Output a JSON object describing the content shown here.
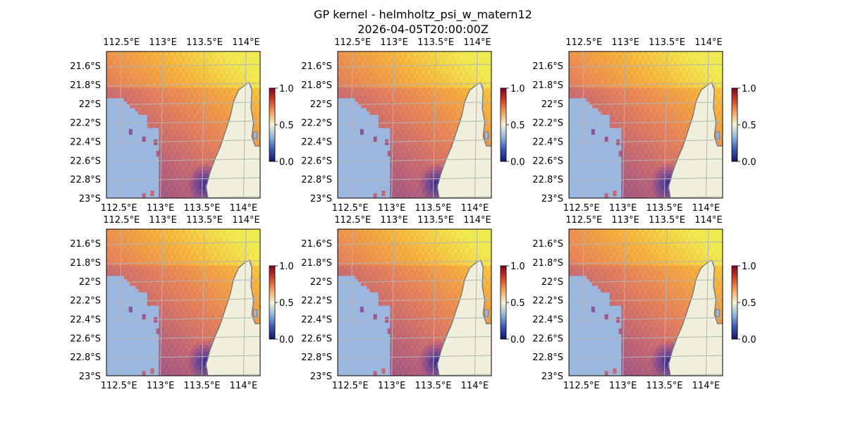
{
  "title_line1": "GP kernel - helmholtz_psi_w_matern12",
  "title_line2": "2026-04-05T20:00:00Z",
  "colors": {
    "ocean": "#9bb7e0",
    "land": "#efefdc",
    "coast": "#6f6f6f",
    "grid": "#b4b4b4",
    "colormap": [
      "#13166b",
      "#3a57b0",
      "#93b6d8",
      "#f4f2d4",
      "#f3a45c",
      "#d2402a",
      "#7f0422"
    ]
  },
  "chart_data": {
    "type": "heatmap",
    "panel_count": 6,
    "layout": "2 rows x 3 columns",
    "xlim": [
      112.35,
      114.2
    ],
    "ylim": [
      -23.0,
      -21.45
    ],
    "x_ticks": [
      112.5,
      113.0,
      113.5,
      114.0
    ],
    "x_tick_labels": [
      "112.5°E",
      "113°E",
      "113.5°E",
      "114°E"
    ],
    "y_ticks": [
      -21.6,
      -21.8,
      -22.0,
      -22.2,
      -22.4,
      -22.6,
      -22.8,
      -23.0
    ],
    "y_tick_labels": [
      "21.6°S",
      "21.8°S",
      "22°S",
      "22.2°S",
      "22.4°S",
      "22.6°S",
      "22.8°S",
      "23°S"
    ],
    "colorbar": {
      "range": [
        0.0,
        1.0
      ],
      "ticks": [
        0.0,
        0.5,
        1.0
      ],
      "tick_labels": [
        "0.0",
        "0.5",
        "1.0"
      ],
      "colormap": "RdYlBu_r"
    },
    "field_description": "values highest (~0.9-1.0) in the north-east, ~0.5-0.7 across the central shelf, lowest (~0.1-0.2) in the south-east near the coast",
    "grid": true
  }
}
